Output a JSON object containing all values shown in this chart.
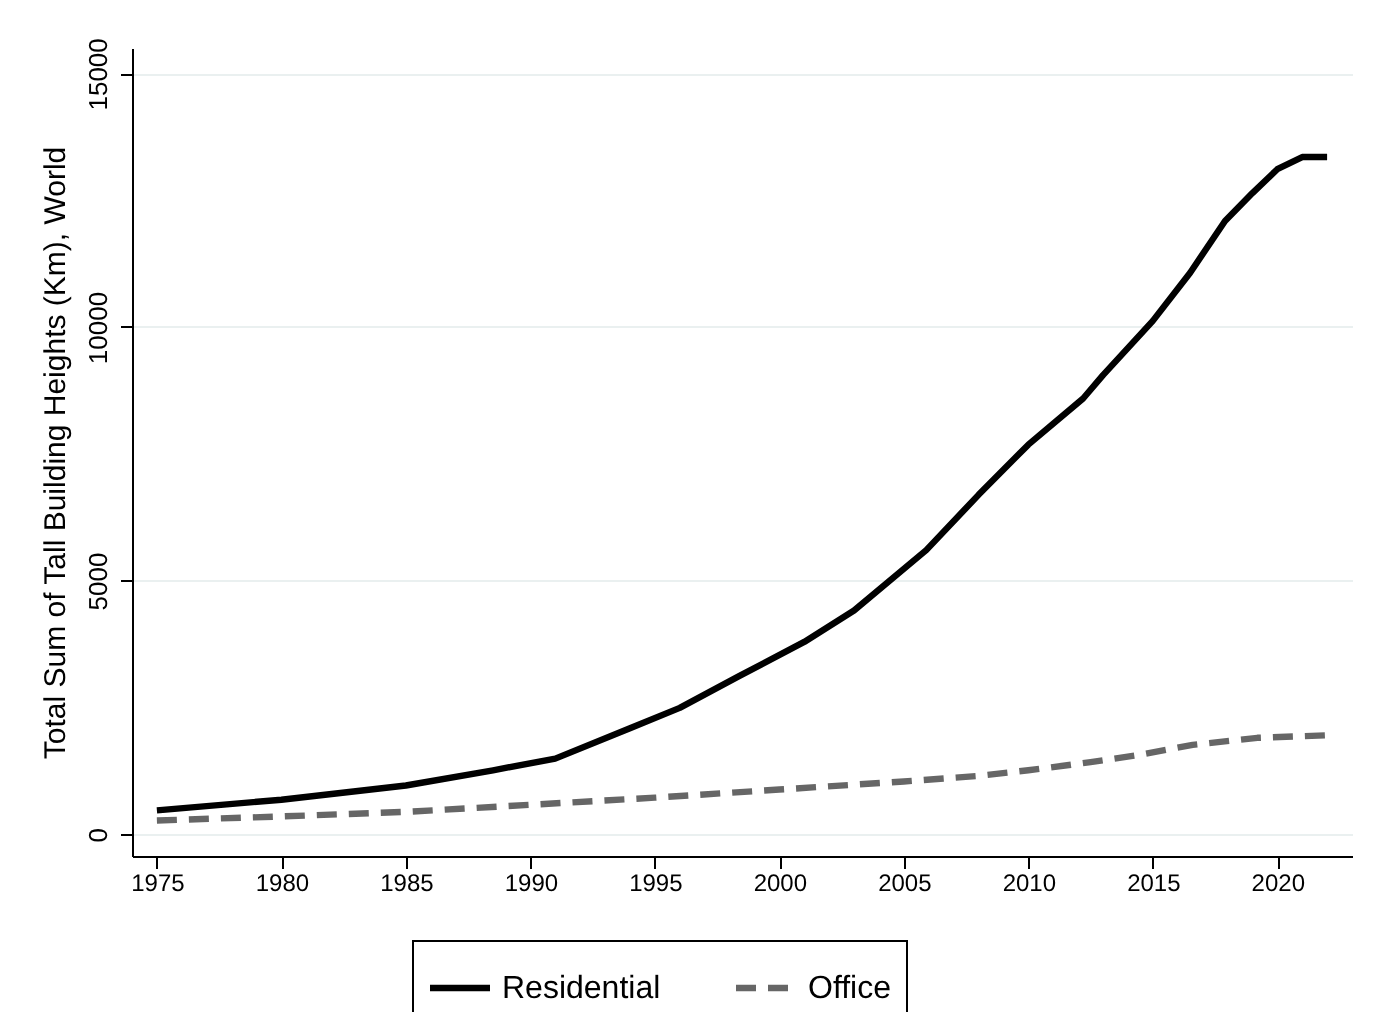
{
  "chart_data": {
    "type": "line",
    "ylabel": "Total Sum of Tall Building Heights (Km), World",
    "xlim": [
      1974,
      2023
    ],
    "ylim": [
      -430,
      15500
    ],
    "xticks": [
      1975,
      1980,
      1985,
      1990,
      1995,
      2000,
      2005,
      2010,
      2015,
      2020
    ],
    "yticks": [
      0,
      5000,
      10000,
      15000
    ],
    "grid": "y",
    "legend": "bottom",
    "marker": "none",
    "series": [
      {
        "name": "Residential",
        "color": "#000000",
        "line_style": "solid",
        "x": [
          1975,
          1980,
          1985,
          1988.5,
          1991,
          1994,
          1996,
          1998.4,
          2001,
          2003,
          2005.9,
          2008,
          2010,
          2012.2,
          2013,
          2015,
          2016.5,
          2017.9,
          2019,
          2020,
          2021,
          2022
        ],
        "values": [
          470,
          680,
          960,
          1260,
          1490,
          2090,
          2490,
          3120,
          3790,
          4410,
          5600,
          6690,
          7680,
          8590,
          9050,
          10120,
          11070,
          12090,
          12640,
          13110,
          13350,
          13350
        ]
      },
      {
        "name": "Office",
        "color": "#666666",
        "line_style": "dashed",
        "x": [
          1975,
          1980,
          1985,
          1990,
          1995,
          2000,
          2005,
          2008,
          2010,
          2012.5,
          2014.4,
          2016.6,
          2019.2,
          2022
        ],
        "values": [
          270,
          350,
          440,
          580,
          720,
          880,
          1040,
          1150,
          1260,
          1420,
          1560,
          1760,
          1900,
          1950
        ]
      }
    ]
  }
}
